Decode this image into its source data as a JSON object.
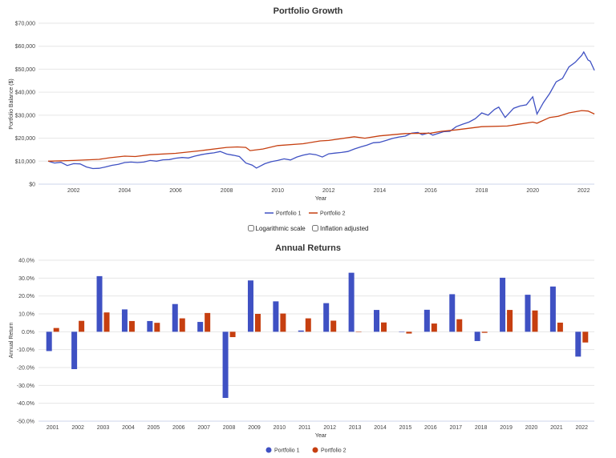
{
  "colors": {
    "portfolio1": "#3f51c3",
    "portfolio2": "#c63f10",
    "grid": "#e6e6e6"
  },
  "options": {
    "log_label": "Logarithmic scale",
    "log_checked": false,
    "inflation_label": "Inflation adjusted",
    "inflation_checked": false
  },
  "chart_data": [
    {
      "type": "line",
      "title": "Portfolio Growth",
      "xlabel": "Year",
      "ylabel": "Portfolio Balance ($)",
      "ylim": [
        0,
        70000
      ],
      "yticks": [
        "$0",
        "$10,000",
        "$20,000",
        "$30,000",
        "$40,000",
        "$50,000",
        "$60,000",
        "$70,000"
      ],
      "xticks": [
        "2002",
        "2004",
        "2006",
        "2008",
        "2010",
        "2012",
        "2014",
        "2016",
        "2018",
        "2020",
        "2022"
      ],
      "grid": true,
      "legend": "bottom",
      "series": [
        {
          "name": "Portfolio 1",
          "points": [
            [
              "2001-01",
              10000
            ],
            [
              "2001-04",
              9200
            ],
            [
              "2001-07",
              9500
            ],
            [
              "2001-10",
              8100
            ],
            [
              "2002-01",
              8900
            ],
            [
              "2002-04",
              8800
            ],
            [
              "2002-07",
              7500
            ],
            [
              "2002-10",
              6800
            ],
            [
              "2003-01",
              6900
            ],
            [
              "2003-04",
              7500
            ],
            [
              "2003-07",
              8200
            ],
            [
              "2003-10",
              8600
            ],
            [
              "2004-01",
              9400
            ],
            [
              "2004-04",
              9600
            ],
            [
              "2004-07",
              9400
            ],
            [
              "2004-10",
              9600
            ],
            [
              "2005-01",
              10300
            ],
            [
              "2005-04",
              10000
            ],
            [
              "2005-07",
              10600
            ],
            [
              "2005-10",
              10700
            ],
            [
              "2006-01",
              11300
            ],
            [
              "2006-04",
              11600
            ],
            [
              "2006-07",
              11400
            ],
            [
              "2006-10",
              12200
            ],
            [
              "2007-01",
              12800
            ],
            [
              "2007-04",
              13300
            ],
            [
              "2007-07",
              13600
            ],
            [
              "2007-10",
              14200
            ],
            [
              "2008-01",
              13100
            ],
            [
              "2008-04",
              12600
            ],
            [
              "2008-07",
              12000
            ],
            [
              "2008-10",
              9200
            ],
            [
              "2009-01",
              8300
            ],
            [
              "2009-03",
              7000
            ],
            [
              "2009-07",
              8900
            ],
            [
              "2009-10",
              9800
            ],
            [
              "2010-01",
              10300
            ],
            [
              "2010-04",
              11000
            ],
            [
              "2010-07",
              10500
            ],
            [
              "2010-10",
              11800
            ],
            [
              "2011-01",
              12600
            ],
            [
              "2011-04",
              13200
            ],
            [
              "2011-07",
              12800
            ],
            [
              "2011-10",
              11800
            ],
            [
              "2012-01",
              13200
            ],
            [
              "2012-04",
              13500
            ],
            [
              "2012-07",
              13800
            ],
            [
              "2012-10",
              14200
            ],
            [
              "2013-01",
              15300
            ],
            [
              "2013-04",
              16200
            ],
            [
              "2013-07",
              17000
            ],
            [
              "2013-10",
              18000
            ],
            [
              "2014-01",
              18200
            ],
            [
              "2014-04",
              19000
            ],
            [
              "2014-07",
              19900
            ],
            [
              "2014-10",
              20500
            ],
            [
              "2015-01",
              20900
            ],
            [
              "2015-04",
              22200
            ],
            [
              "2015-07",
              22500
            ],
            [
              "2015-09",
              21500
            ],
            [
              "2015-12",
              22300
            ],
            [
              "2016-02",
              21300
            ],
            [
              "2016-07",
              22800
            ],
            [
              "2016-10",
              23000
            ],
            [
              "2017-01",
              25000
            ],
            [
              "2017-04",
              26100
            ],
            [
              "2017-07",
              27000
            ],
            [
              "2017-10",
              28500
            ],
            [
              "2018-01",
              31000
            ],
            [
              "2018-04",
              30000
            ],
            [
              "2018-07",
              32500
            ],
            [
              "2018-09",
              33500
            ],
            [
              "2018-12",
              29000
            ],
            [
              "2019-04",
              33000
            ],
            [
              "2019-07",
              34000
            ],
            [
              "2019-10",
              34500
            ],
            [
              "2020-01",
              38000
            ],
            [
              "2020-03",
              30500
            ],
            [
              "2020-06",
              35500
            ],
            [
              "2020-09",
              39500
            ],
            [
              "2020-12",
              44500
            ],
            [
              "2021-03",
              46000
            ],
            [
              "2021-06",
              51000
            ],
            [
              "2021-09",
              53000
            ],
            [
              "2021-12",
              56000
            ],
            [
              "2022-01",
              57500
            ],
            [
              "2022-03",
              54000
            ],
            [
              "2022-04",
              53500
            ],
            [
              "2022-06",
              49500
            ]
          ]
        },
        {
          "name": "Portfolio 2",
          "points": [
            [
              "2001-01",
              10000
            ],
            [
              "2002-01",
              10300
            ],
            [
              "2003-01",
              10800
            ],
            [
              "2003-06",
              11500
            ],
            [
              "2004-01",
              12200
            ],
            [
              "2004-06",
              12000
            ],
            [
              "2005-01",
              12800
            ],
            [
              "2006-01",
              13400
            ],
            [
              "2007-01",
              14600
            ],
            [
              "2008-01",
              16000
            ],
            [
              "2008-06",
              16200
            ],
            [
              "2008-10",
              16000
            ],
            [
              "2008-12",
              14600
            ],
            [
              "2009-06",
              15300
            ],
            [
              "2010-01",
              16800
            ],
            [
              "2011-01",
              17600
            ],
            [
              "2011-09",
              18800
            ],
            [
              "2012-01",
              19000
            ],
            [
              "2013-01",
              20600
            ],
            [
              "2013-06",
              20000
            ],
            [
              "2014-01",
              21000
            ],
            [
              "2015-01",
              22000
            ],
            [
              "2016-01",
              22200
            ],
            [
              "2016-06",
              23000
            ],
            [
              "2017-01",
              23600
            ],
            [
              "2018-01",
              25000
            ],
            [
              "2019-01",
              25300
            ],
            [
              "2019-06",
              26000
            ],
            [
              "2020-01",
              27000
            ],
            [
              "2020-03",
              26500
            ],
            [
              "2020-09",
              29000
            ],
            [
              "2021-01",
              29500
            ],
            [
              "2021-06",
              31000
            ],
            [
              "2021-12",
              32000
            ],
            [
              "2022-03",
              31800
            ],
            [
              "2022-06",
              30500
            ]
          ]
        }
      ]
    },
    {
      "type": "bar",
      "title": "Annual Returns",
      "xlabel": "Year",
      "ylabel": "Annual Return",
      "ylim": [
        -50,
        40
      ],
      "yticks": [
        "-50.0%",
        "-40.0%",
        "-30.0%",
        "-20.0%",
        "-10.0%",
        "0.0%",
        "10.0%",
        "20.0%",
        "30.0%",
        "40.0%"
      ],
      "grid": true,
      "legend": "bottom",
      "categories": [
        "2001",
        "2002",
        "2003",
        "2004",
        "2005",
        "2006",
        "2007",
        "2008",
        "2009",
        "2010",
        "2011",
        "2012",
        "2013",
        "2014",
        "2015",
        "2016",
        "2017",
        "2018",
        "2019",
        "2020",
        "2021",
        "2022"
      ],
      "series": [
        {
          "name": "Portfolio 1",
          "values": [
            -10.8,
            -20.9,
            31.1,
            12.5,
            6.0,
            15.5,
            5.5,
            -37.0,
            28.7,
            17.0,
            0.7,
            16.0,
            33.0,
            12.2,
            0.0,
            12.3,
            21.0,
            -5.2,
            30.2,
            20.7,
            25.3,
            -13.9
          ]
        },
        {
          "name": "Portfolio 2",
          "values": [
            2.1,
            6.1,
            10.8,
            6.0,
            5.0,
            7.5,
            10.5,
            -3.0,
            10.0,
            10.2,
            7.5,
            6.2,
            0.0,
            5.2,
            -1.0,
            4.6,
            7.0,
            -0.6,
            12.2,
            11.9,
            5.1,
            -6.0
          ]
        }
      ]
    }
  ]
}
